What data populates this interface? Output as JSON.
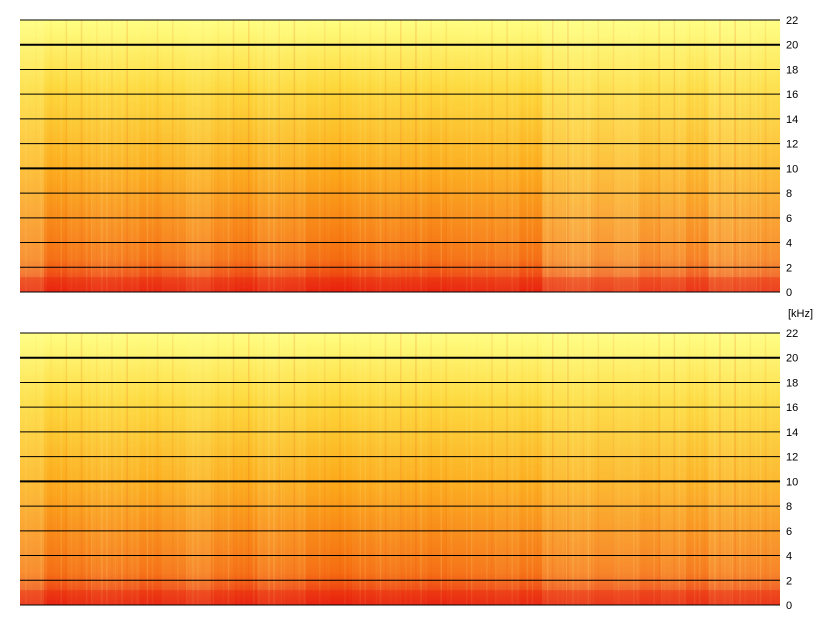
{
  "chart_data": [
    {
      "type": "heatmap",
      "channel": 1,
      "ylabel": "[kHz]",
      "ylim": [
        0,
        22
      ],
      "y_ticks": [
        0,
        2,
        4,
        6,
        8,
        10,
        12,
        14,
        16,
        18,
        20,
        22
      ],
      "major_lines": [
        10,
        20
      ],
      "x_segment_intensity": [
        0.55,
        0.15,
        0.25,
        0.35,
        0.3,
        0.2,
        0.3,
        0.45,
        0.25,
        0.15,
        0.35,
        0.3,
        0.15,
        0.1,
        0.2,
        0.25,
        0.2,
        0.15,
        0.2,
        0.25,
        0.3,
        0.15,
        0.6,
        0.7,
        0.55,
        0.65,
        0.45,
        0.55,
        0.35,
        0.65,
        0.6,
        0.5
      ],
      "colormap": [
        "#e8140a",
        "#f5640a",
        "#fca514",
        "#fdd535",
        "#ffff80"
      ]
    },
    {
      "type": "heatmap",
      "channel": 2,
      "ylabel": "[kHz]",
      "ylim": [
        0,
        22
      ],
      "y_ticks": [
        0,
        2,
        4,
        6,
        8,
        10,
        12,
        14,
        16,
        18,
        20,
        22
      ],
      "major_lines": [
        10,
        20
      ],
      "x_segment_intensity": [
        0.5,
        0.15,
        0.25,
        0.35,
        0.3,
        0.2,
        0.3,
        0.45,
        0.25,
        0.15,
        0.35,
        0.3,
        0.15,
        0.1,
        0.2,
        0.25,
        0.2,
        0.15,
        0.2,
        0.25,
        0.3,
        0.2,
        0.45,
        0.5,
        0.4,
        0.45,
        0.35,
        0.45,
        0.3,
        0.5,
        0.45,
        0.4
      ],
      "colormap": [
        "#e8140a",
        "#f5640a",
        "#fca514",
        "#fdd535",
        "#ffff80"
      ]
    }
  ]
}
